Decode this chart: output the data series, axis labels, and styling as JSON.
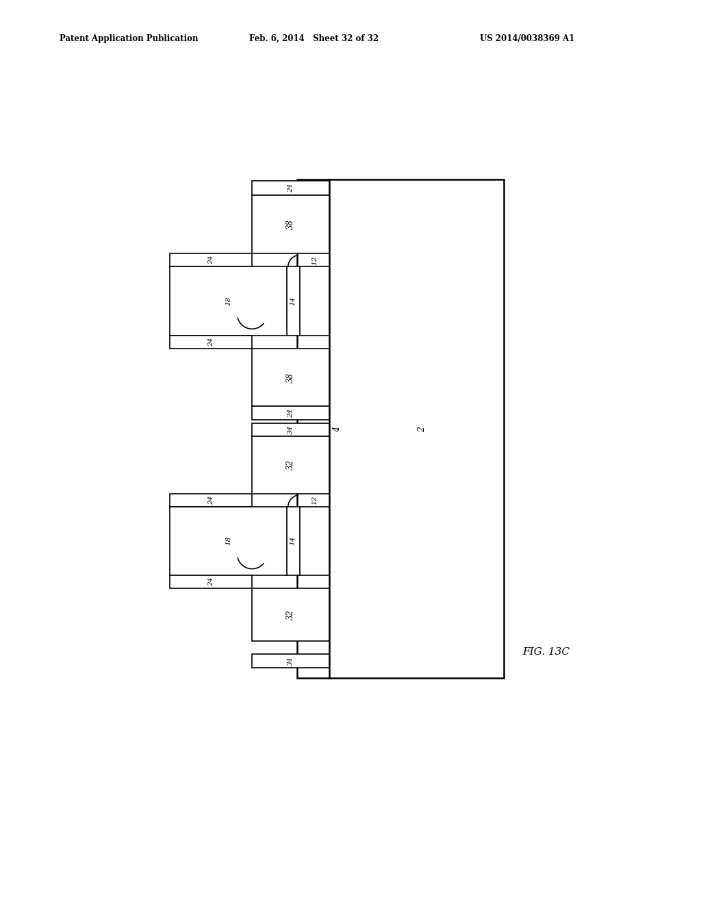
{
  "header_left": "Patent Application Publication",
  "header_mid": "Feb. 6, 2014   Sheet 32 of 32",
  "header_right": "US 2014/0038369 A1",
  "fig_label": "FIG. 13C",
  "bg_color": "#ffffff",
  "line_color": "#000000",
  "fig_width": 10.24,
  "fig_height": 13.2
}
